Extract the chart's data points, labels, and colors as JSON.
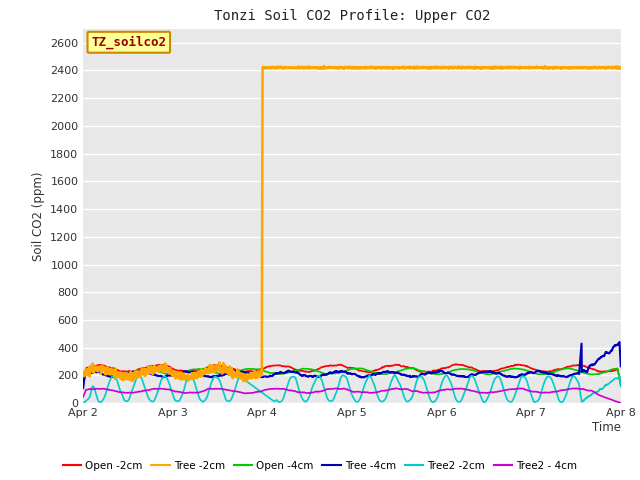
{
  "title": "Tonzi Soil CO2 Profile: Upper CO2",
  "ylabel": "Soil CO2 (ppm)",
  "xlabel": "Time",
  "ylim": [
    0,
    2700
  ],
  "yticks": [
    0,
    200,
    400,
    600,
    800,
    1000,
    1200,
    1400,
    1600,
    1800,
    2000,
    2200,
    2400,
    2600
  ],
  "x_start": 0,
  "x_end": 6.0,
  "fig_bg_color": "#ffffff",
  "plot_bg_color": "#e8e8e8",
  "legend_box_fill": "#ffff99",
  "legend_box_edge": "#cc8800",
  "legend_text": "TZ_soilco2",
  "series": {
    "open_2cm": {
      "color": "#ff0000",
      "label": "Open -2cm",
      "lw": 1.2
    },
    "tree_2cm": {
      "color": "#ffa500",
      "label": "Tree -2cm",
      "lw": 1.8
    },
    "open_4cm": {
      "color": "#00cc00",
      "label": "Open -4cm",
      "lw": 1.2
    },
    "tree_4cm": {
      "color": "#0000bb",
      "label": "Tree -4cm",
      "lw": 1.5
    },
    "tree2_2cm": {
      "color": "#00cccc",
      "label": "Tree2 -2cm",
      "lw": 1.2
    },
    "tree2_4cm": {
      "color": "#cc00cc",
      "label": "Tree2 - 4cm",
      "lw": 1.2
    }
  },
  "x_tick_labels": [
    "Apr 2",
    "Apr 3",
    "Apr 4",
    "Apr 5",
    "Apr 6",
    "Apr 7",
    "Apr 8"
  ],
  "x_tick_positions": [
    0,
    1,
    2,
    3,
    4,
    5,
    6
  ]
}
